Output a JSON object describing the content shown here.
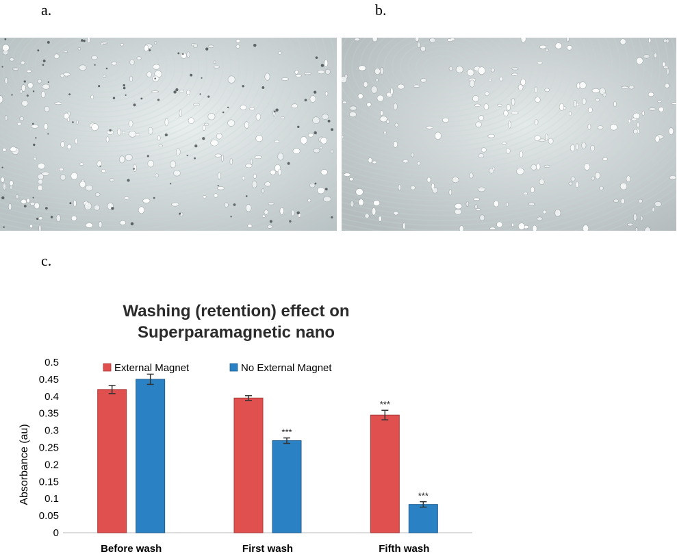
{
  "panels": {
    "a": "a.",
    "b": "b.",
    "c": "c."
  },
  "micrographs": [
    {
      "id": "a",
      "description_icon": "microscope-image",
      "base_color": "#b9c2c4",
      "light_color": "#e9eeee"
    },
    {
      "id": "b",
      "description_icon": "microscope-image",
      "base_color": "#b4bcbe",
      "light_color": "#e4e9e9"
    }
  ],
  "chart_data": {
    "type": "bar",
    "title": [
      "Washing (retention) effect on",
      "Superparamagnetic nano"
    ],
    "categories": [
      "Before wash",
      "First wash",
      "Fifth wash"
    ],
    "ylabel": "Absorbance (au)",
    "ylim": [
      0,
      0.5
    ],
    "yticks": [
      "0",
      "0.05",
      "0.1",
      "0.15",
      "0.2",
      "0.25",
      "0.3",
      "0.35",
      "0.4",
      "0.45",
      "0.5"
    ],
    "grid": false,
    "legend_position": "top",
    "series": [
      {
        "name": "External Magnet",
        "color": "#e0504f",
        "edge": "#a83a3a",
        "values": [
          0.42,
          0.395,
          0.345
        ],
        "errors": [
          0.012,
          0.007,
          0.014
        ],
        "significance": [
          "",
          "",
          "***"
        ]
      },
      {
        "name": "No External Magnet",
        "color": "#2a82c4",
        "edge": "#1f5f90",
        "values": [
          0.45,
          0.27,
          0.083
        ],
        "errors": [
          0.015,
          0.008,
          0.008
        ],
        "significance": [
          "",
          "***",
          "***"
        ]
      }
    ]
  }
}
